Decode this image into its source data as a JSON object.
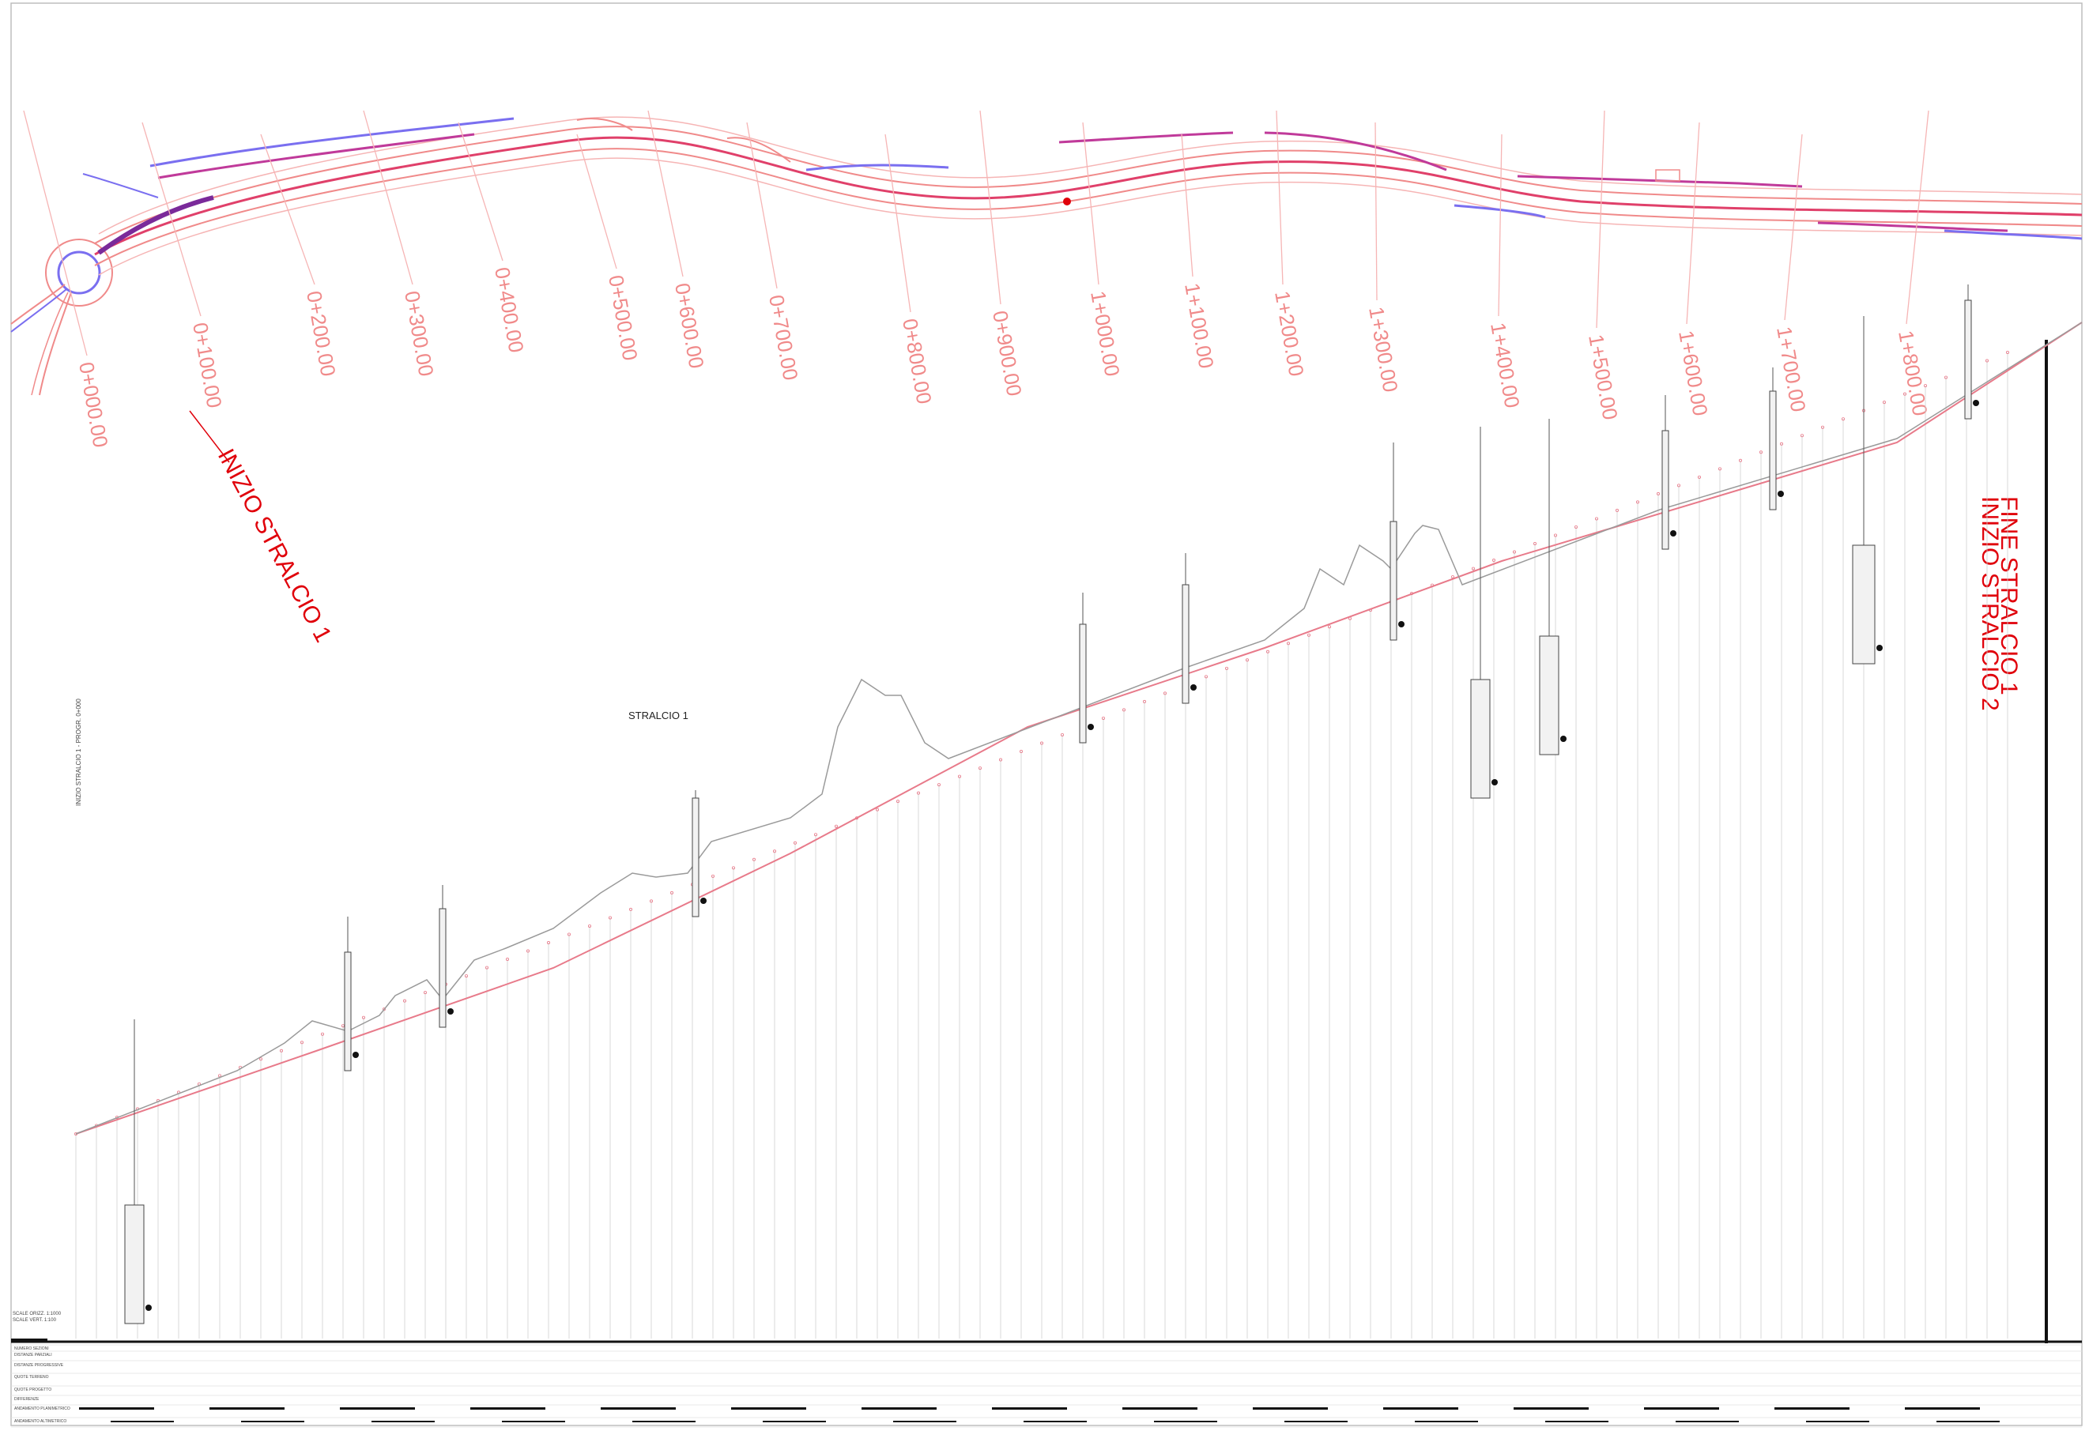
{
  "plan": {
    "chainages": [
      "0+000.00",
      "0+100.00",
      "0+200.00",
      "0+300.00",
      "0+400.00",
      "0+500.00",
      "0+600.00",
      "0+700.00",
      "0+800.00",
      "0+900.00",
      "1+000.00",
      "1+100.00",
      "1+200.00",
      "1+300.00",
      "1+400.00",
      "1+500.00",
      "1+600.00",
      "1+700.00",
      "1+800.00"
    ],
    "stage_start": "INIZIO STRALCIO 1",
    "stage_change_1": "INIZIO STRALCIO 2",
    "stage_change_2": "FINE STRALCIO 1"
  },
  "profile": {
    "stage_label": "STRALCIO 1",
    "left_vertical_note": "INIZIO STRALCIO 1 - PROGR. 0+000",
    "scale_note_1": "SCALE ORIZZ. 1:1000",
    "scale_note_2": "SCALE VERT. 1:100"
  },
  "table": {
    "rows": [
      "NUMERO SEZIONI",
      "DISTANZE PARZIALI",
      "DISTANZE PROGRESSIVE",
      "QUOTE TERRENO",
      "QUOTE PROGETTO",
      "DIFFERENZE",
      "ANDAMENTO PLANIMETRICO",
      "ANDAMENTO ALTIMETRICO"
    ]
  },
  "colors": {
    "plan_line": "#f08a8a",
    "plan_edge": "#e0406a",
    "plan_blue": "#7a6ff0",
    "stage_text": "#e0000a",
    "profile_grade": "#e87a8a",
    "terrain": "#9a9a9a"
  }
}
